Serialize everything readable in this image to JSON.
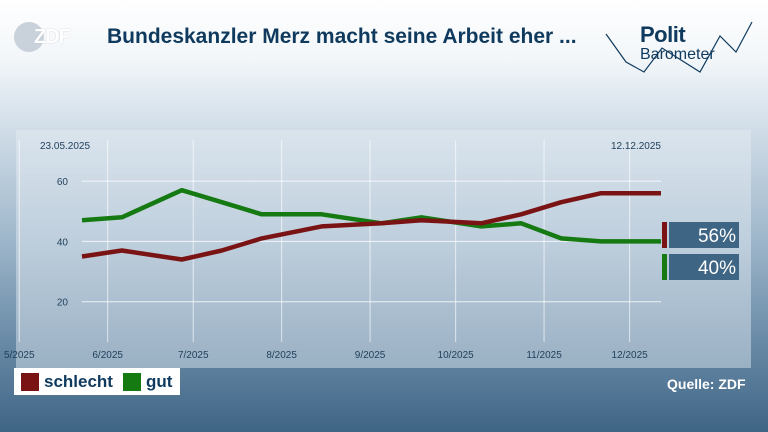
{
  "header": {
    "title": "Bundeskanzler Merz macht seine Arbeit eher ...",
    "logo_left": "ZDF",
    "logo_right_line1": "Polit",
    "logo_right_line2": "Barometer"
  },
  "source": "Quelle: ZDF",
  "chart_data": {
    "type": "line",
    "date_start_label": "23.05.2025",
    "date_end_label": "12.12.2025",
    "x": [
      "2025-05-23",
      "2025-06-06",
      "2025-06-27",
      "2025-07-11",
      "2025-07-25",
      "2025-08-15",
      "2025-09-05",
      "2025-09-19",
      "2025-10-10",
      "2025-10-24",
      "2025-11-07",
      "2025-11-21",
      "2025-12-12"
    ],
    "x_ticks": [
      "2025-05-01",
      "2025-06-01",
      "2025-07-01",
      "2025-08-01",
      "2025-09-01",
      "2025-10-01",
      "2025-11-01",
      "2025-12-01"
    ],
    "x_tick_labels": [
      "5/2025",
      "6/2025",
      "7/2025",
      "8/2025",
      "9/2025",
      "10/2025",
      "11/2025",
      "12/2025"
    ],
    "xlim": [
      "2025-05-01",
      "2025-12-31"
    ],
    "ylim": [
      0,
      70
    ],
    "y_ticks": [
      20,
      40,
      60
    ],
    "grid": true,
    "series": [
      {
        "name": "schlecht",
        "color": "#7a1414",
        "values": [
          35,
          37,
          34,
          37,
          41,
          45,
          46,
          47,
          46,
          49,
          53,
          56,
          56
        ],
        "end_label": "56%"
      },
      {
        "name": "gut",
        "color": "#157a12",
        "values": [
          47,
          48,
          57,
          53,
          49,
          49,
          46,
          48,
          45,
          46,
          41,
          40,
          40
        ],
        "end_label": "40%"
      }
    ],
    "legend": "bottom-left"
  }
}
